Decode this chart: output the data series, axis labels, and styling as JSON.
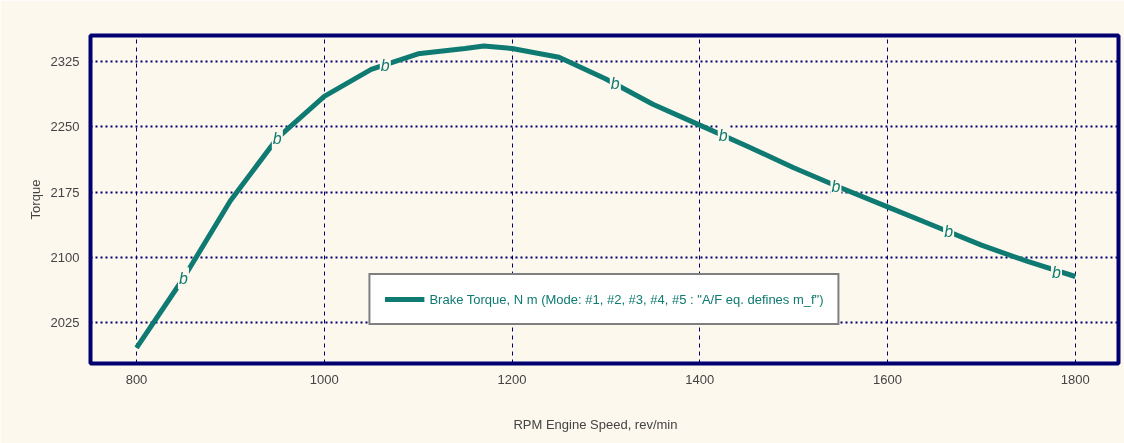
{
  "chart_data": {
    "type": "line",
    "xlabel": "RPM      Engine Speed, rev/min",
    "ylabel": "Torque",
    "x": [
      800,
      850,
      900,
      950,
      1000,
      1050,
      1100,
      1150,
      1170,
      1200,
      1250,
      1300,
      1350,
      1400,
      1450,
      1500,
      1550,
      1600,
      1650,
      1700,
      1750,
      1800
    ],
    "series": [
      {
        "name": "Brake Torque, N m (Mode: #1, #2, #3, #4, #5 : \"A/F eq. defines m_f\")",
        "color": "#0e7a72",
        "values": [
          1996,
          2076,
          2165,
          2237,
          2285,
          2316,
          2334,
          2340,
          2343,
          2340,
          2330,
          2305,
          2276,
          2252,
          2228,
          2203,
          2180,
          2158,
          2136,
          2114,
          2095,
          2078
        ]
      }
    ],
    "annotations": [
      {
        "text": "b",
        "x": 850,
        "y": 2076
      },
      {
        "text": "b",
        "x": 950,
        "y": 2237
      },
      {
        "text": "b",
        "x": 1065,
        "y": 2321
      },
      {
        "text": "b",
        "x": 1310,
        "y": 2300
      },
      {
        "text": "b",
        "x": 1425,
        "y": 2240
      },
      {
        "text": "b",
        "x": 1545,
        "y": 2182
      },
      {
        "text": "b",
        "x": 1665,
        "y": 2130
      },
      {
        "text": "b",
        "x": 1780,
        "y": 2083
      }
    ],
    "xlim": [
      751,
      1846
    ],
    "ylim": [
      1978,
      2355
    ],
    "xticks": [
      800,
      1000,
      1200,
      1400,
      1600,
      1800
    ],
    "yticks": [
      2025,
      2100,
      2175,
      2250,
      2325
    ],
    "grid": true,
    "legend": "bottom",
    "line_style": "solid",
    "marker": "none"
  }
}
